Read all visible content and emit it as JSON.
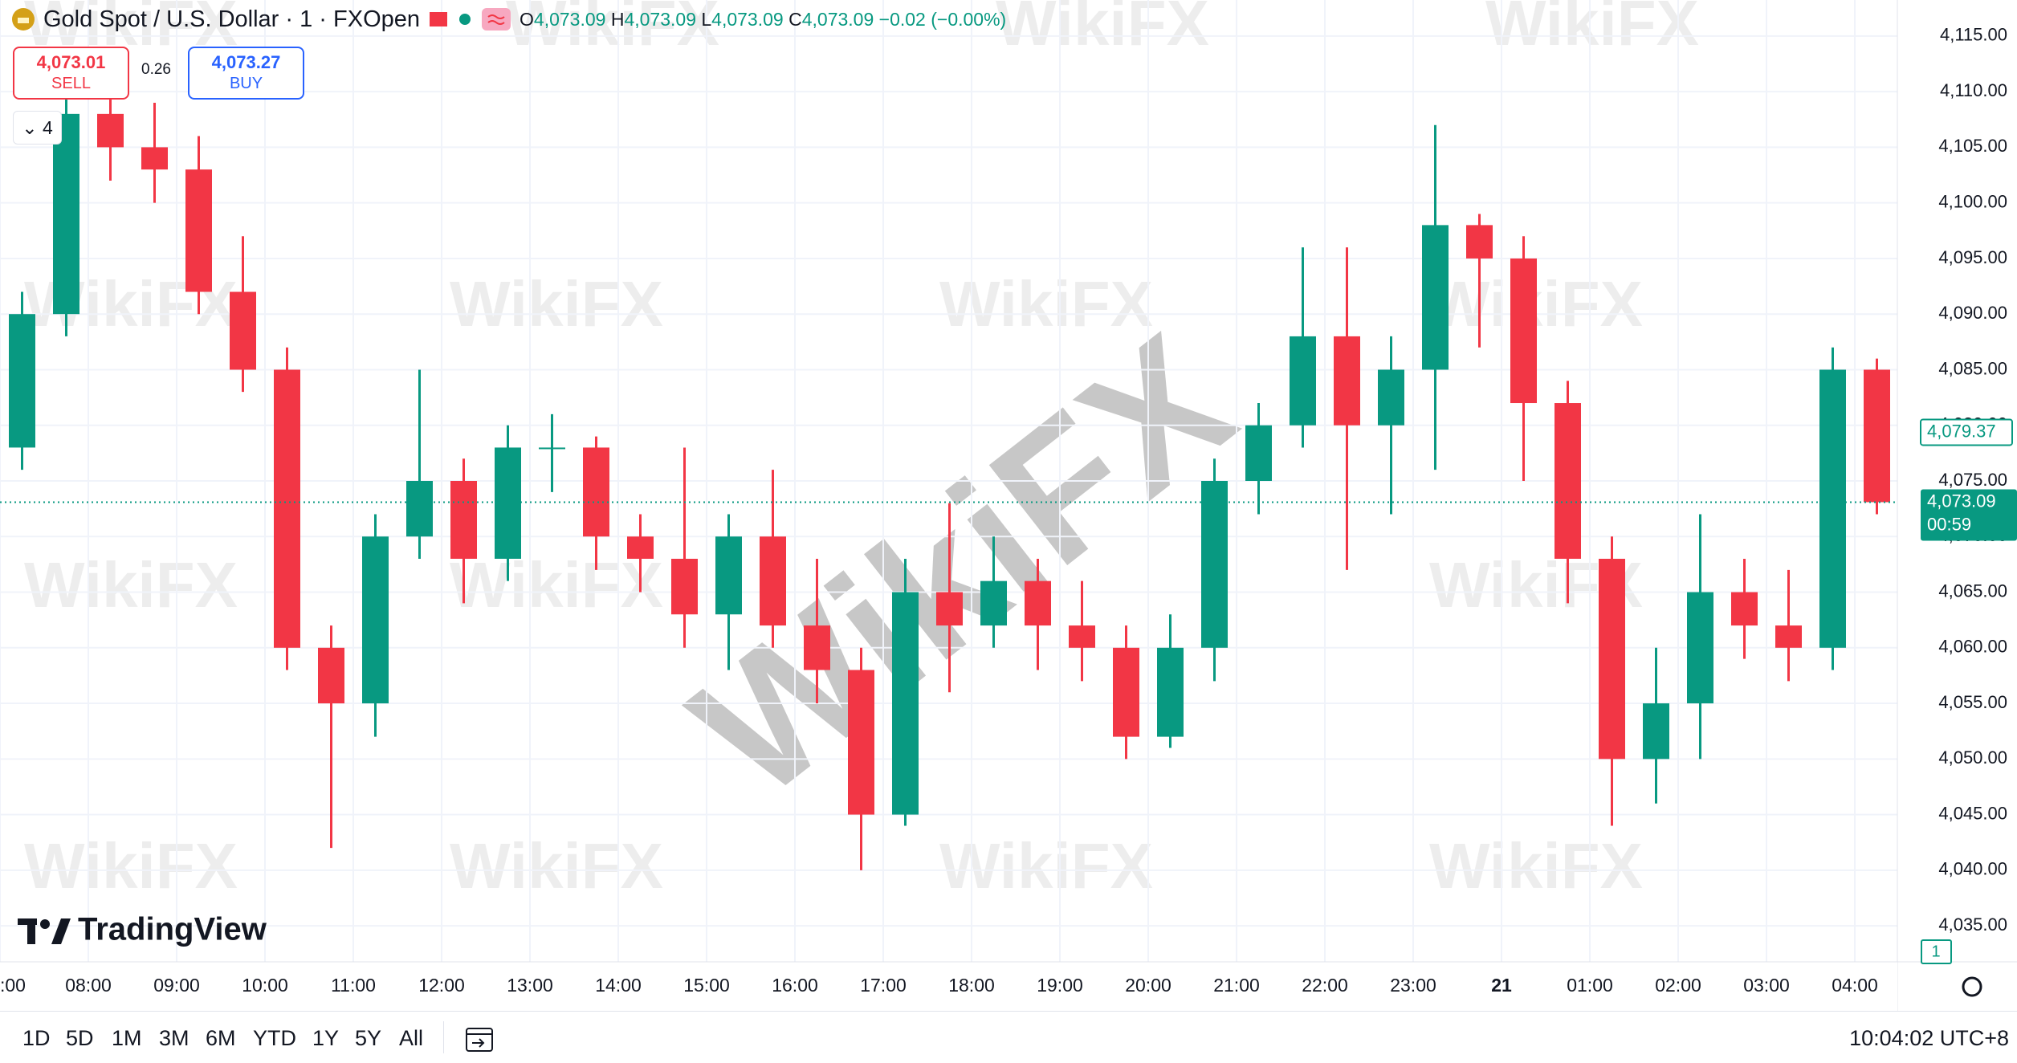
{
  "header": {
    "symbol": "Gold Spot / U.S. Dollar · 1 · FXOpen",
    "o_label": "O",
    "open": "4,073.09",
    "h_label": "H",
    "high": "4,073.09",
    "l_label": "L",
    "low": "4,073.09",
    "c_label": "C",
    "close": "4,073.09",
    "change": "−0.02 (−0.00%)"
  },
  "trade": {
    "sell_price": "4,073.01",
    "sell": "SELL",
    "spread": "0.26",
    "buy_price": "4,073.27",
    "buy": "BUY",
    "indicators": "4"
  },
  "chart_data": {
    "type": "candlestick",
    "up_color": "#089981",
    "down_color": "#f23645",
    "grid": true,
    "categories": [
      ":00",
      null,
      "08:00",
      null,
      "09:00",
      null,
      "10:00",
      null,
      "11:00",
      null,
      "12:00",
      null,
      "13:00",
      null,
      "14:00",
      null,
      "15:00",
      null,
      "16:00",
      null,
      "17:00",
      null,
      "18:00",
      null,
      "19:00",
      null,
      "20:00",
      null,
      "21:00",
      null,
      "22:00",
      null,
      "23:00",
      null,
      "21",
      null,
      "01:00",
      null,
      "02:00",
      null,
      "03:00",
      null,
      "04:00"
    ],
    "open": [
      4078,
      4090,
      4108,
      4105,
      4103,
      4092,
      4085,
      4060,
      4055,
      4070,
      4075,
      4068,
      4078,
      4078,
      4070,
      4068,
      4063,
      4070,
      4062,
      4058,
      4045,
      4065,
      4062,
      4066,
      4062,
      4060,
      4052,
      4060,
      4075,
      4080,
      4088,
      4080,
      4085,
      4098,
      4095,
      4082,
      4068,
      4050,
      4055,
      4065,
      4062,
      4060,
      4085
    ],
    "high": [
      4092,
      4110,
      4110,
      4109,
      4106,
      4097,
      4087,
      4062,
      4072,
      4085,
      4077,
      4080,
      4081,
      4079,
      4072,
      4078,
      4072,
      4076,
      4068,
      4060,
      4068,
      4073,
      4070,
      4068,
      4066,
      4062,
      4063,
      4077,
      4082,
      4096,
      4096,
      4088,
      4107,
      4099,
      4097,
      4084,
      4070,
      4060,
      4072,
      4068,
      4067,
      4087,
      4086
    ],
    "low": [
      4076,
      4088,
      4102,
      4100,
      4090,
      4083,
      4058,
      4042,
      4052,
      4068,
      4064,
      4066,
      4074,
      4067,
      4065,
      4060,
      4058,
      4060,
      4055,
      4040,
      4044,
      4056,
      4060,
      4058,
      4057,
      4050,
      4051,
      4057,
      4072,
      4078,
      4067,
      4072,
      4076,
      4087,
      4075,
      4064,
      4044,
      4046,
      4050,
      4059,
      4057,
      4058,
      4072
    ],
    "close": [
      4090,
      4108,
      4105,
      4103,
      4092,
      4085,
      4060,
      4055,
      4070,
      4075,
      4068,
      4078,
      4078,
      4070,
      4068,
      4063,
      4070,
      4062,
      4058,
      4045,
      4065,
      4062,
      4066,
      4062,
      4060,
      4052,
      4060,
      4075,
      4080,
      4088,
      4080,
      4085,
      4098,
      4095,
      4082,
      4068,
      4050,
      4055,
      4065,
      4062,
      4060,
      4085,
      4073.09
    ],
    "ylim": [
      4031.76,
      4118.24
    ],
    "yticks": [
      {
        "value": 4035,
        "label": "4,035.00"
      },
      {
        "value": 4040,
        "label": "4,040.00"
      },
      {
        "value": 4045,
        "label": "4,045.00"
      },
      {
        "value": 4050,
        "label": "4,050.00"
      },
      {
        "value": 4055,
        "label": "4,055.00"
      },
      {
        "value": 4060,
        "label": "4,060.00"
      },
      {
        "value": 4065,
        "label": "4,065.00"
      },
      {
        "value": 4070,
        "label": "4,070.00"
      },
      {
        "value": 4075,
        "label": "4,075.00"
      },
      {
        "value": 4080,
        "label": "4,080.00"
      },
      {
        "value": 4085,
        "label": "4,085.00"
      },
      {
        "value": 4090,
        "label": "4,090.00"
      },
      {
        "value": 4095,
        "label": "4,095.00"
      },
      {
        "value": 4100,
        "label": "4,100.00"
      },
      {
        "value": 4105,
        "label": "4,105.00"
      },
      {
        "value": 4110,
        "label": "4,110.00"
      },
      {
        "value": 4115,
        "label": "4,115.00"
      }
    ],
    "marker_price": {
      "value": 4079.37,
      "label": "4,079.37"
    },
    "last_price": {
      "value": 4073.09,
      "label": "4,073.09"
    },
    "countdown": "00:59",
    "pane_count": "1"
  },
  "branding": {
    "logo": "TradingView",
    "watermark": "WikiFX"
  },
  "toolbar": {
    "ranges": [
      "1D",
      "5D",
      "1M",
      "3M",
      "6M",
      "YTD",
      "1Y",
      "5Y",
      "All"
    ],
    "clock": "10:04:02 UTC+8"
  }
}
